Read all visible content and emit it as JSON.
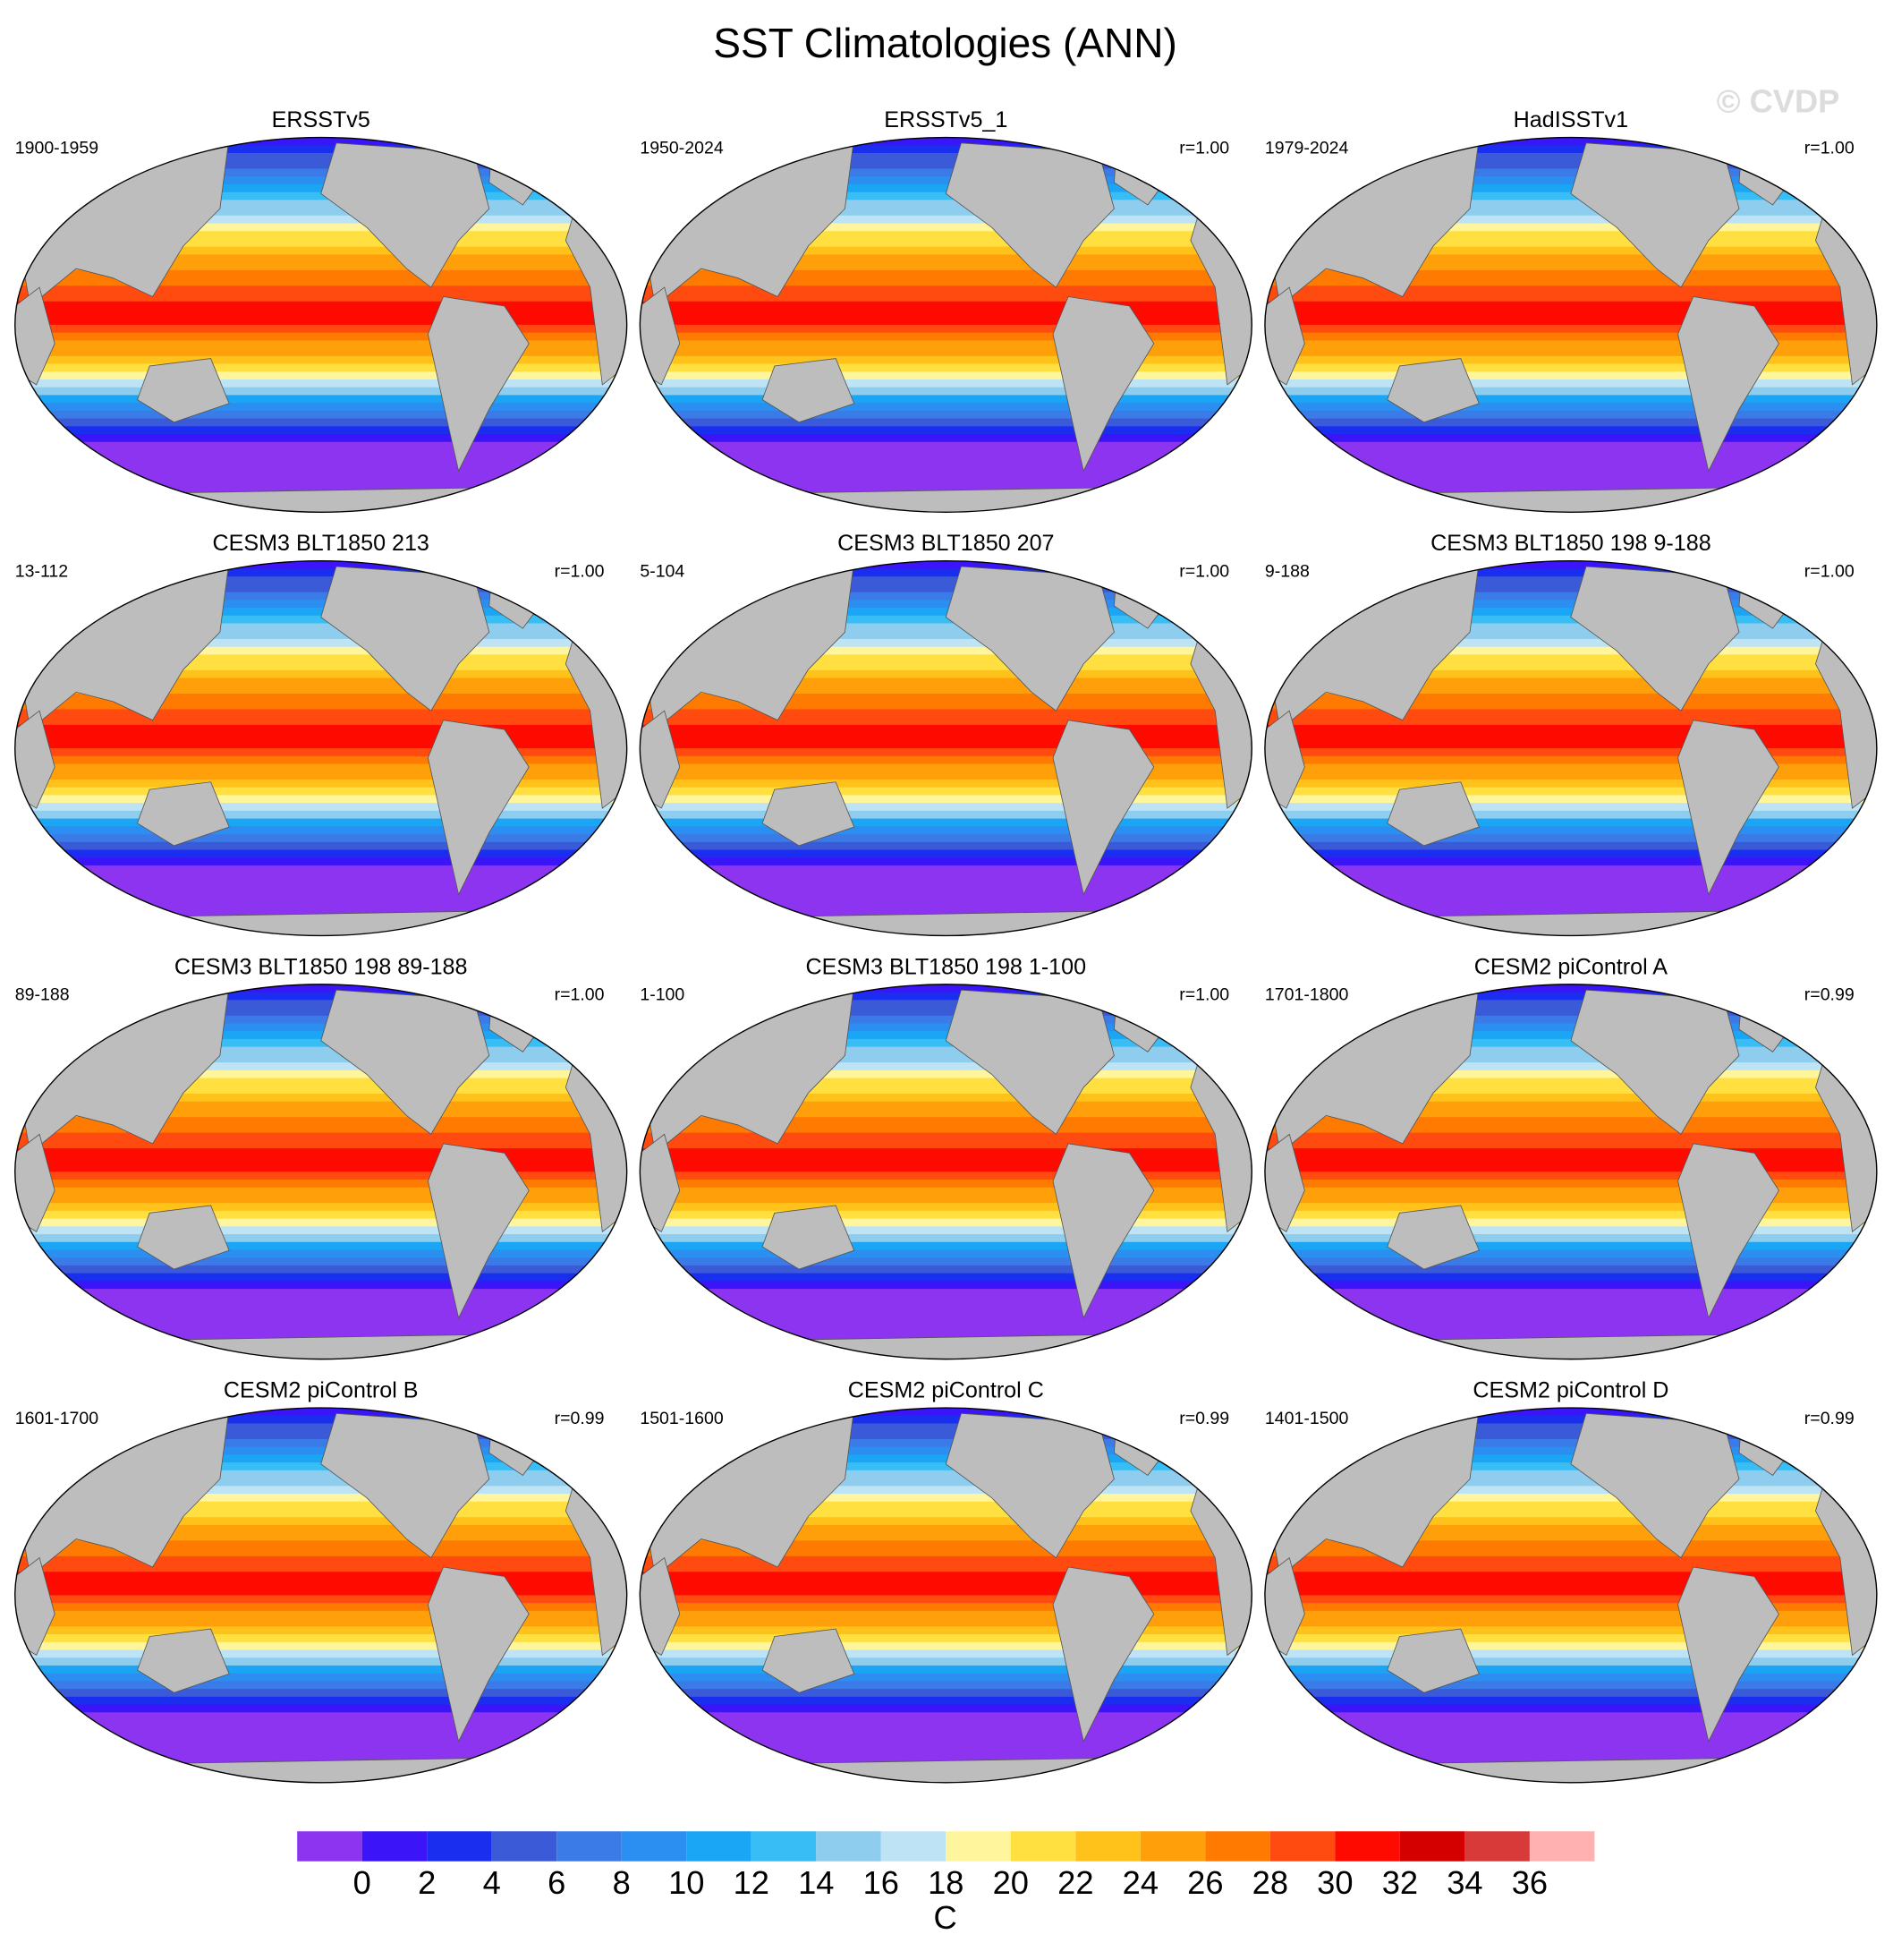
{
  "title": "SST Climatologies (ANN)",
  "watermark": "© CVDP",
  "panels": [
    {
      "title": "ERSSTv5",
      "period": "1900-1959"
    },
    {
      "title": "ERSSTv5_1",
      "period": "1950-2024",
      "r": "r=1.00"
    },
    {
      "title": "HadISSTv1",
      "period": "1979-2024",
      "r": "r=1.00"
    },
    {
      "title": "CESM3 BLT1850 213",
      "period": "13-112",
      "r": "r=1.00"
    },
    {
      "title": "CESM3 BLT1850 207",
      "period": "5-104",
      "r": "r=1.00"
    },
    {
      "title": "CESM3 BLT1850 198 9-188",
      "period": "9-188",
      "r": "r=1.00"
    },
    {
      "title": "CESM3 BLT1850 198 89-188",
      "period": "89-188",
      "r": "r=1.00"
    },
    {
      "title": "CESM3 BLT1850 198 1-100",
      "period": "1-100",
      "r": "r=1.00"
    },
    {
      "title": "CESM2 piControl A",
      "period": "1701-1800",
      "r": "r=0.99"
    },
    {
      "title": "CESM2 piControl B",
      "period": "1601-1700",
      "r": "r=0.99"
    },
    {
      "title": "CESM2 piControl C",
      "period": "1501-1600",
      "r": "r=0.99"
    },
    {
      "title": "CESM2 piControl D",
      "period": "1401-1500",
      "r": "r=0.99"
    }
  ],
  "colorbar": {
    "colors": [
      "#8c34f0",
      "#3b14f7",
      "#1a2ef0",
      "#3a5ad8",
      "#3b7be8",
      "#2a8ff0",
      "#1aa6f5",
      "#38bdf5",
      "#8ecdee",
      "#bde3f5",
      "#fff59d",
      "#ffe040",
      "#ffc21a",
      "#ff9f0a",
      "#ff7a00",
      "#ff4a10",
      "#ff0a00",
      "#d40000",
      "#d83a3a",
      "#ffb0b0"
    ],
    "ticks": [
      0,
      2,
      4,
      6,
      8,
      10,
      12,
      14,
      16,
      18,
      20,
      22,
      24,
      26,
      28,
      30,
      32,
      34,
      36
    ],
    "label": "C"
  }
}
